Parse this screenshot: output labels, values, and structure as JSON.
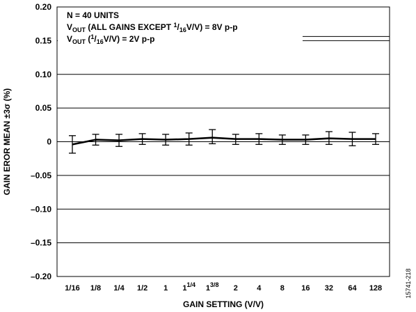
{
  "chart_data": {
    "type": "line",
    "xlabel": "GAIN SETTING (V/V)",
    "ylabel": "GAIN EROR MEAN ±3σ (%)",
    "ylim": [
      -0.2,
      0.2
    ],
    "yticks": [
      0.2,
      0.15,
      0.1,
      0.05,
      0,
      -0.05,
      -0.1,
      -0.15,
      -0.2
    ],
    "ytick_labels": [
      "0.20",
      "0.15",
      "0.10",
      "0.05",
      "0",
      "–0.05",
      "–0.10",
      "–0.15",
      "–0.20"
    ],
    "grid": "horizontal",
    "categories": [
      {
        "base": "1/16"
      },
      {
        "base": "1/8"
      },
      {
        "base": "1/4"
      },
      {
        "base": "1/2"
      },
      {
        "base": "1"
      },
      {
        "base": "1",
        "sup": "1/4"
      },
      {
        "base": "1",
        "sup": "3/8"
      },
      {
        "base": "2"
      },
      {
        "base": "4"
      },
      {
        "base": "8"
      },
      {
        "base": "16"
      },
      {
        "base": "32"
      },
      {
        "base": "64"
      },
      {
        "base": "128"
      }
    ],
    "series": [
      {
        "mean": [
          -0.004,
          0.003,
          0.002,
          0.004,
          0.003,
          0.004,
          0.006,
          0.004,
          0.004,
          0.003,
          0.003,
          0.005,
          0.004,
          0.004
        ],
        "upper": [
          0.009,
          0.011,
          0.011,
          0.012,
          0.011,
          0.013,
          0.018,
          0.011,
          0.012,
          0.01,
          0.01,
          0.015,
          0.014,
          0.012
        ],
        "lower": [
          -0.017,
          -0.005,
          -0.007,
          -0.004,
          -0.005,
          -0.005,
          -0.003,
          -0.004,
          -0.004,
          -0.004,
          -0.004,
          -0.004,
          -0.006,
          -0.004
        ]
      }
    ],
    "annotations": [
      {
        "parts": [
          {
            "t": "N = 40 UNITS"
          }
        ]
      },
      {
        "parts": [
          {
            "t": "V"
          },
          {
            "t": "OUT",
            "sub": true
          },
          {
            "t": " (ALL GAINS EXCEPT "
          },
          {
            "t": "1",
            "sup": true
          },
          {
            "t": "/"
          },
          {
            "t": "16",
            "sub": true
          },
          {
            "t": "V/V) = 8V p-p"
          }
        ]
      },
      {
        "parts": [
          {
            "t": "V"
          },
          {
            "t": "OUT",
            "sub": true
          },
          {
            "t": " ("
          },
          {
            "t": "1",
            "sup": true
          },
          {
            "t": "/"
          },
          {
            "t": "16",
            "sub": true
          },
          {
            "t": "V/V) = 2V p-p"
          }
        ]
      }
    ],
    "figure_id": "15741-218"
  }
}
